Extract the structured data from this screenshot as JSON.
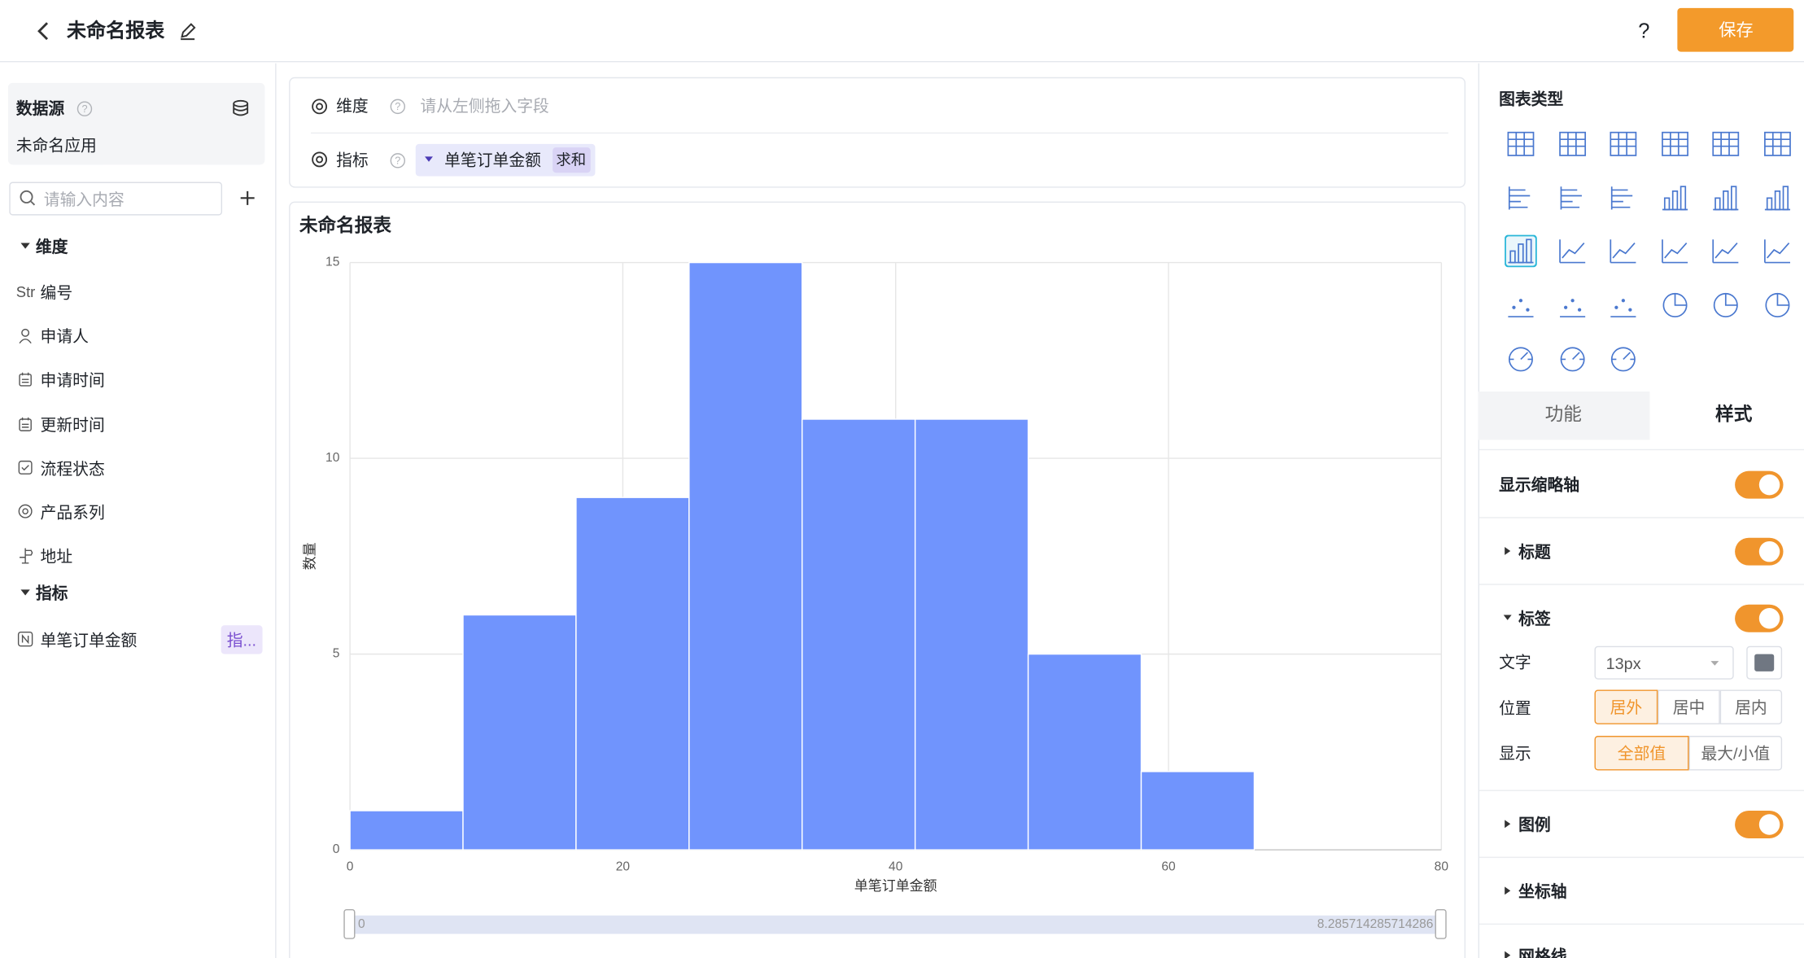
{
  "header": {
    "title": "未命名报表",
    "help": "?",
    "save": "保存"
  },
  "sidebar": {
    "datasource_label": "数据源",
    "app_name": "未命名应用",
    "search_placeholder": "请输入内容",
    "dimension_section": "维度",
    "dimension_fields": [
      {
        "type": "Str",
        "name": "编号"
      },
      {
        "name": "申请人"
      },
      {
        "name": "申请时间"
      },
      {
        "name": "更新时间"
      },
      {
        "name": "流程状态"
      },
      {
        "name": "产品系列"
      },
      {
        "name": "地址"
      }
    ],
    "metric_section": "指标",
    "metric_fields": [
      {
        "name": "单笔订单金额",
        "tag": "指..."
      }
    ]
  },
  "query": {
    "dimension_label": "维度",
    "dimension_placeholder": "请从左侧拖入字段",
    "metric_label": "指标",
    "metric_field": "单笔订单金额",
    "metric_aggregation": "求和"
  },
  "chart_data": {
    "type": "histogram",
    "title": "未命名报表",
    "x_label": "单笔订单金额",
    "y_label": "数量",
    "bins": [
      0,
      8.285714285714286,
      16.571428571428573,
      24.857142857142858,
      33.142857142857146,
      41.42857142857143,
      49.714285714285715,
      58,
      66.28571428571429
    ],
    "values": [
      1,
      6,
      9,
      15,
      11,
      11,
      5,
      2
    ],
    "color": "#7094fd",
    "xlim": [
      0,
      80
    ],
    "xticks": [
      0,
      20,
      40,
      60,
      80
    ],
    "ylim": [
      0,
      15
    ],
    "yticks": [
      0,
      5,
      10,
      15
    ],
    "grid": true,
    "zoom_range": [
      0,
      8.285714285714286
    ]
  },
  "panel": {
    "chart_type_label": "图表类型",
    "tabs": [
      "功能",
      "样式"
    ],
    "show_zoom_axis": "显示缩略轴",
    "title_section": "标题",
    "label_section": "标签",
    "text_label": "文字",
    "font_size": "13px",
    "position_label": "位置",
    "position_options": [
      "居外",
      "居中",
      "居内"
    ],
    "display_label": "显示",
    "display_options": [
      "全部值",
      "最大/小值"
    ],
    "legend_section": "图例",
    "axis_section": "坐标轴",
    "grid_section": "网格线"
  }
}
